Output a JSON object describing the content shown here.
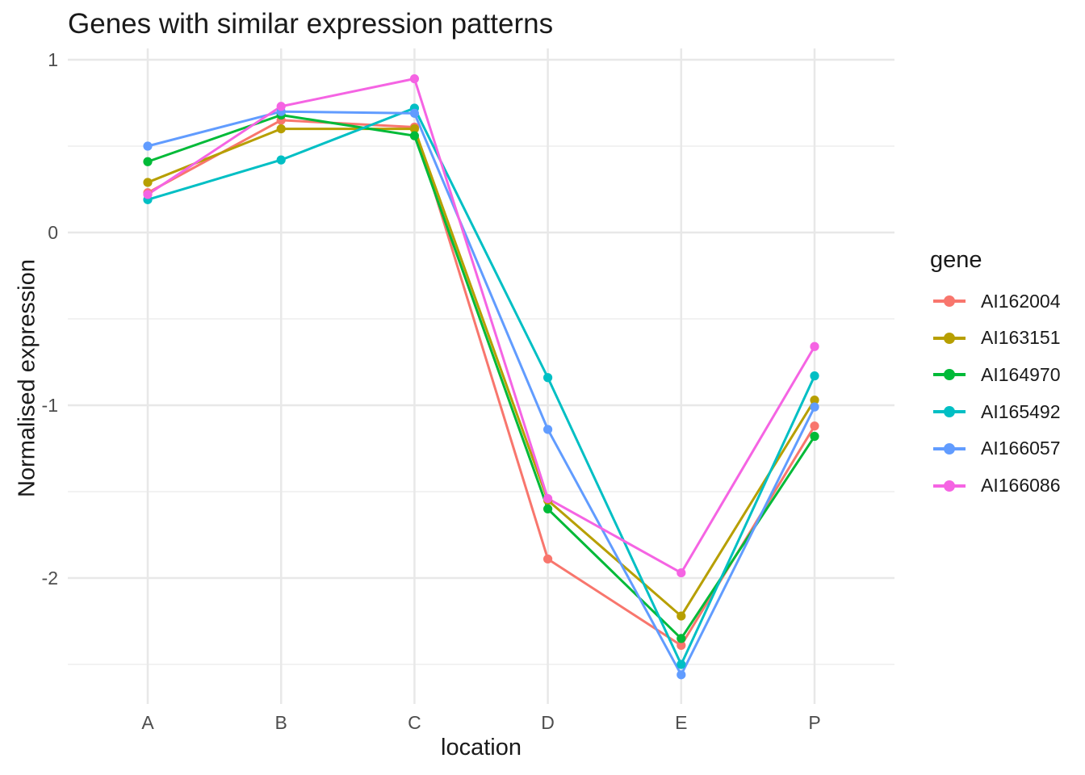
{
  "title": "Genes with similar expression patterns",
  "chart_data": {
    "type": "line",
    "title": "Genes with similar expression patterns",
    "xlabel": "location",
    "ylabel": "Normalised expression",
    "categories": [
      "A",
      "B",
      "C",
      "D",
      "E",
      "P"
    ],
    "yticks": [
      1,
      0,
      -1,
      -2
    ],
    "yticks_minor": [
      0.5,
      -0.5,
      -1.5,
      -2.5
    ],
    "ylim": [
      -2.73,
      1.05
    ],
    "grid": true,
    "legend_title": "gene",
    "legend_position": "right",
    "series": [
      {
        "name": "AI162004",
        "color": "#F8766D",
        "values": [
          0.23,
          0.65,
          0.61,
          -1.89,
          -2.39,
          -1.12
        ]
      },
      {
        "name": "AI163151",
        "color": "#B79F00",
        "values": [
          0.29,
          0.6,
          0.6,
          -1.55,
          -2.22,
          -0.97
        ]
      },
      {
        "name": "AI164970",
        "color": "#00BA38",
        "values": [
          0.41,
          0.68,
          0.56,
          -1.6,
          -2.35,
          -1.18
        ]
      },
      {
        "name": "AI165492",
        "color": "#00BFC4",
        "values": [
          0.19,
          0.42,
          0.72,
          -0.84,
          -2.5,
          -0.83
        ]
      },
      {
        "name": "AI166057",
        "color": "#619CFF",
        "values": [
          0.5,
          0.7,
          0.69,
          -1.14,
          -2.56,
          -1.01
        ]
      },
      {
        "name": "AI166086",
        "color": "#F564E3",
        "values": [
          0.22,
          0.73,
          0.89,
          -1.54,
          -1.97,
          -0.66
        ]
      }
    ]
  },
  "style_colors": {
    "background": "#ffffff",
    "grid_major": "#e8e8e8",
    "grid_minor": "#f0f0f0",
    "tick_text": "#4d4d4d",
    "text": "#1a1a1a"
  }
}
